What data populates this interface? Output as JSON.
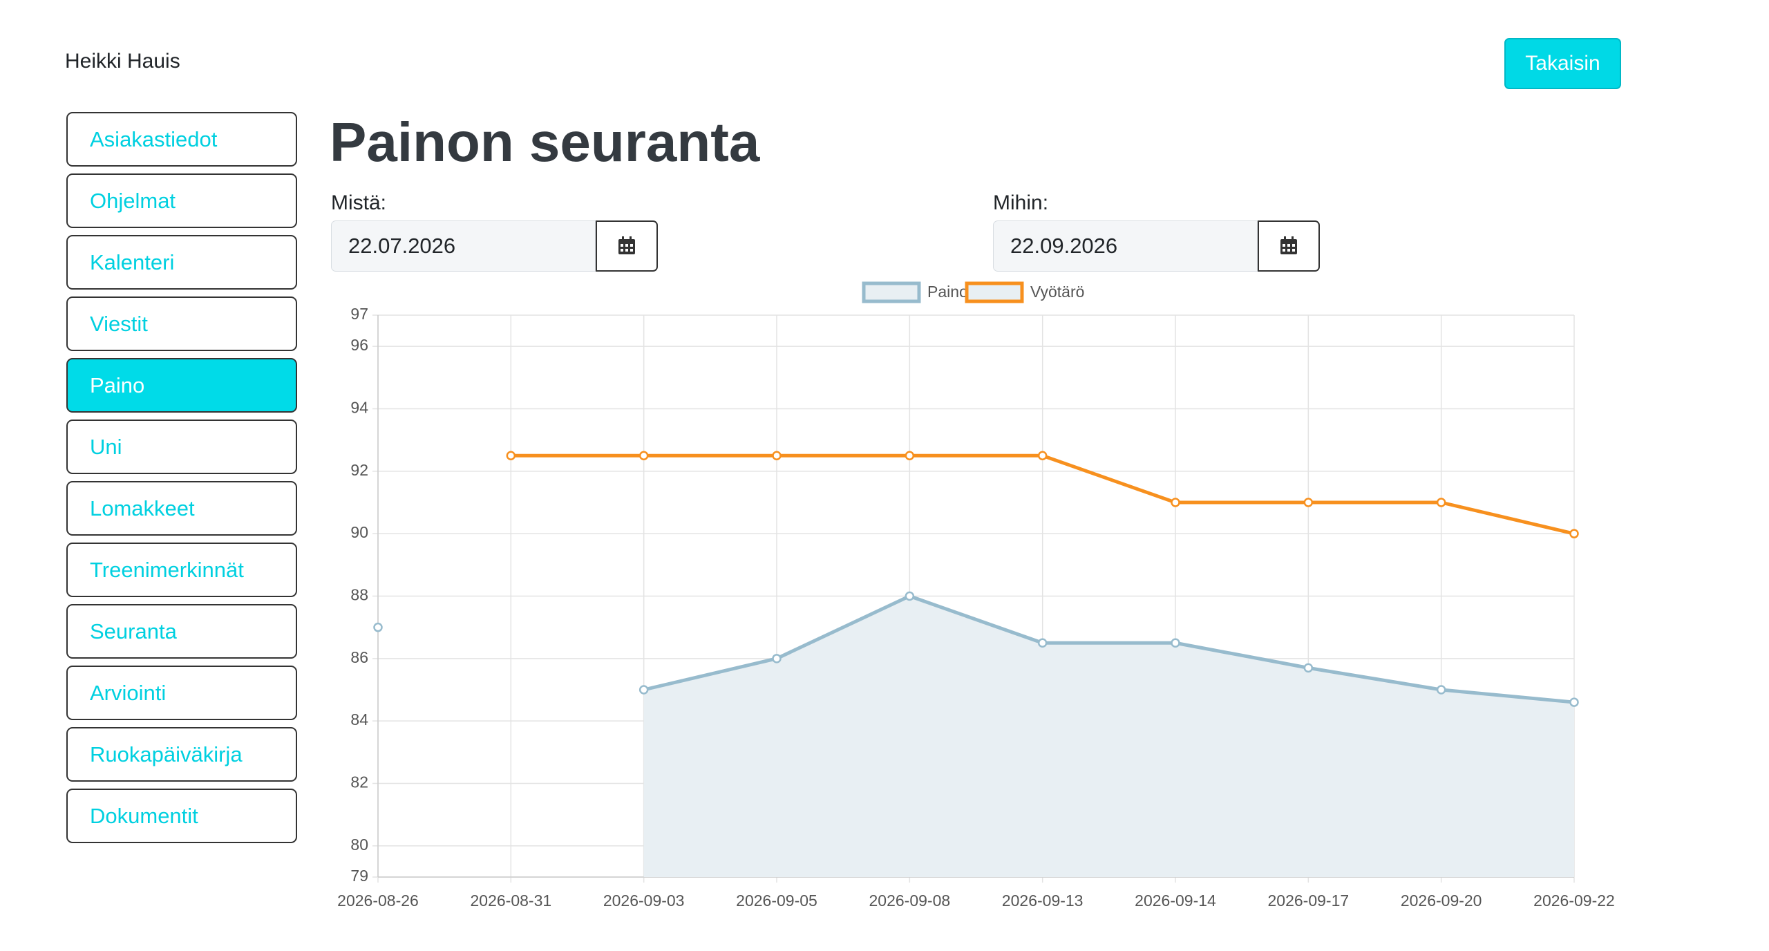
{
  "header": {
    "user_name": "Heikki Hauis",
    "back_button": "Takaisin"
  },
  "nav": {
    "items": [
      "Asiakastiedot",
      "Ohjelmat",
      "Kalenteri",
      "Viestit",
      "Paino",
      "Uni",
      "Lomakkeet",
      "Treenimerkinnät",
      "Seuranta",
      "Arviointi",
      "Ruokapäiväkirja",
      "Dokumentit"
    ],
    "active": 4
  },
  "title": "Painon seuranta",
  "filters": {
    "from_label": "Mistä:",
    "from_value": "22.07.2026",
    "to_label": "Mihin:",
    "to_value": "22.09.2026"
  },
  "chart_data": {
    "type": "line",
    "categories": [
      "2026-08-26",
      "2026-08-31",
      "2026-09-03",
      "2026-09-05",
      "2026-09-08",
      "2026-09-13",
      "2026-09-14",
      "2026-09-17",
      "2026-09-20",
      "2026-09-22"
    ],
    "series": [
      {
        "name": "Paino",
        "color": "#97bbcd",
        "fill": "#e8eff3",
        "values": [
          87,
          null,
          85,
          86,
          88,
          86.5,
          86.5,
          85.7,
          85,
          84.6
        ]
      },
      {
        "name": "Vyötärö",
        "color": "#f7901e",
        "fill": "#e8eff3",
        "values": [
          null,
          92.5,
          92.5,
          92.5,
          92.5,
          92.5,
          91,
          91,
          91,
          90
        ]
      }
    ],
    "ylim": [
      79,
      97
    ],
    "yticks": [
      79,
      80,
      82,
      84,
      86,
      88,
      90,
      92,
      94,
      96,
      97
    ],
    "grid": true,
    "legend": "top"
  }
}
